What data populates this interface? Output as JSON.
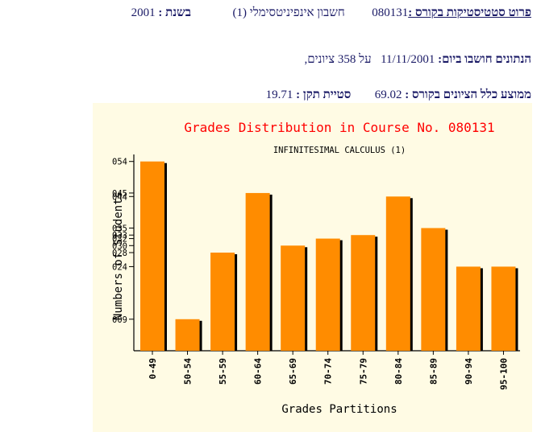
{
  "header": {
    "course_label": "פרוט סטטיסטיקות בקורס :",
    "course_number": "080131",
    "course_name": "חשבון אינפיניטסימלי (1)",
    "year_label": "בשנת :",
    "year_value": "2001",
    "computed_label": "הנתונים חושבו ביום:",
    "computed_date": "11/11/2001",
    "grades_count_text": "על 358 ציונים,",
    "avg_label": "ממוצע כלל הציונים בקורס :",
    "avg_value": "69.02",
    "std_label": "סטיית תקן :",
    "std_value": "19.71"
  },
  "colors": {
    "chart_background": "#fffbe4",
    "bar_fill": "#ff8c00",
    "bar_shadow": "#000000",
    "title_color": "#ff0000",
    "text_color": "#1a1a66"
  },
  "chart_data": {
    "type": "bar",
    "title": "Grades Distribution in Course No. 080131",
    "subtitle": "INFINITESIMAL CALCULUS (1)",
    "xlabel": "Grades Partitions",
    "ylabel": "Numbers of Students",
    "categories": [
      "0-49",
      "50-54",
      "55-59",
      "60-64",
      "65-69",
      "70-74",
      "75-79",
      "80-84",
      "85-89",
      "90-94",
      "95-100"
    ],
    "values": [
      54,
      9,
      28,
      45,
      30,
      32,
      33,
      44,
      35,
      24,
      24
    ],
    "ytick_labels": [
      "054",
      "045",
      "044",
      "035",
      "033",
      "032",
      "030",
      "028",
      "024",
      "009"
    ],
    "ylim": [
      0,
      56
    ],
    "grid": false,
    "legend": "none"
  }
}
